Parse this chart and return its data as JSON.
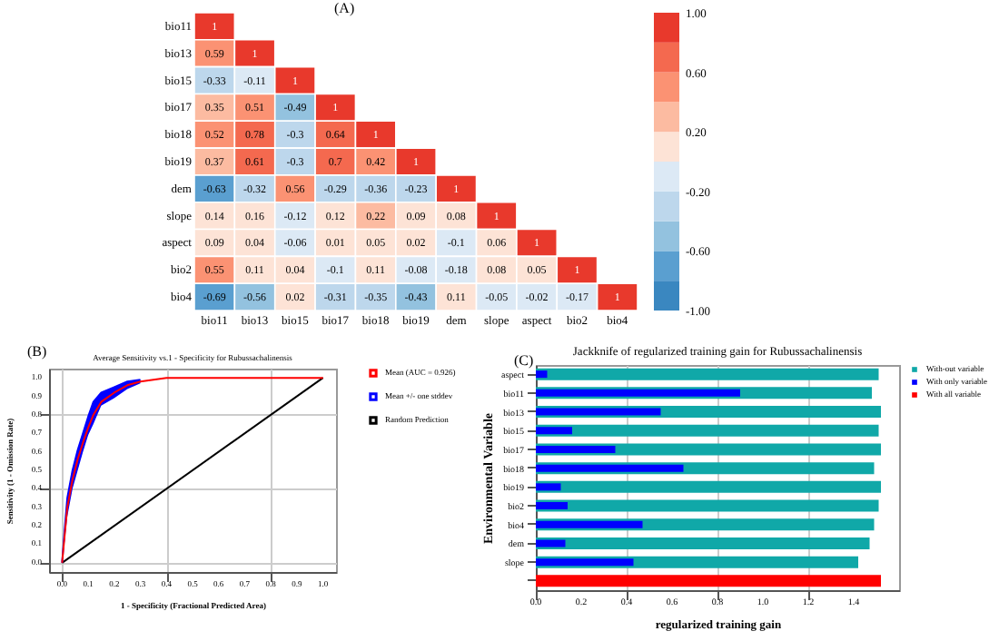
{
  "chart_data": [
    {
      "type": "heatmap",
      "annotations": [
        "(A)"
      ],
      "categories": [
        "bio11",
        "bio13",
        "bio15",
        "bio17",
        "bio18",
        "bio19",
        "dem",
        "slope",
        "aspect",
        "bio2",
        "bio4"
      ],
      "y_categories": [
        "bio11",
        "bio13",
        "bio15",
        "bio17",
        "bio18",
        "bio19",
        "dem",
        "slope",
        "aspect",
        "bio2",
        "bio4"
      ],
      "cells": [
        [
          1,
          null,
          null,
          null,
          null,
          null,
          null,
          null,
          null,
          null,
          null
        ],
        [
          0.59,
          1,
          null,
          null,
          null,
          null,
          null,
          null,
          null,
          null,
          null
        ],
        [
          -0.33,
          -0.11,
          1,
          null,
          null,
          null,
          null,
          null,
          null,
          null,
          null
        ],
        [
          0.35,
          0.51,
          -0.49,
          1,
          null,
          null,
          null,
          null,
          null,
          null,
          null
        ],
        [
          0.52,
          0.78,
          -0.3,
          0.64,
          1,
          null,
          null,
          null,
          null,
          null,
          null
        ],
        [
          0.37,
          0.61,
          -0.3,
          0.7,
          0.42,
          1,
          null,
          null,
          null,
          null,
          null
        ],
        [
          -0.63,
          -0.32,
          0.56,
          -0.29,
          -0.36,
          -0.23,
          1,
          null,
          null,
          null,
          null
        ],
        [
          0.14,
          0.16,
          -0.12,
          0.12,
          0.22,
          0.09,
          0.08,
          1,
          null,
          null,
          null
        ],
        [
          0.09,
          0.04,
          -0.06,
          0.01,
          0.05,
          0.02,
          -0.1,
          0.06,
          1,
          null,
          null
        ],
        [
          0.55,
          0.11,
          0.04,
          -0.1,
          0.11,
          -0.08,
          -0.18,
          0.08,
          0.05,
          1,
          null
        ],
        [
          -0.69,
          -0.56,
          0.02,
          -0.31,
          -0.35,
          -0.43,
          0.11,
          -0.05,
          -0.02,
          -0.17,
          1
        ]
      ],
      "data_labels": true,
      "clim": [
        -1,
        1
      ],
      "cticks": [
        {
          "value": -1,
          "label": "-1.00"
        },
        {
          "value": -0.6,
          "label": "-0.60"
        },
        {
          "value": -0.2,
          "label": "-0.20"
        },
        {
          "value": 0.2,
          "label": "0.20"
        },
        {
          "value": 0.6,
          "label": "0.60"
        },
        {
          "value": 1,
          "label": "1.00"
        }
      ]
    },
    {
      "type": "line",
      "title": "Average Sensitivity vs.1 - Specificity for Rubussachalinensis",
      "annotations": [
        "(B)"
      ],
      "xlabel": "1 - Specificity (Fractional Predicted Area)",
      "ylabel": "Sensitivity (1 - Omission Rate)",
      "x": [
        0,
        0.01,
        0.02,
        0.04,
        0.06,
        0.08,
        0.1,
        0.12,
        0.15,
        0.2,
        0.25,
        0.3,
        0.4,
        0.5,
        0.6,
        0.8,
        1
      ],
      "series": [
        {
          "name": "Mean (AUC = 0.926)",
          "color": "#ff0000",
          "values": [
            0,
            0.15,
            0.3,
            0.45,
            0.56,
            0.65,
            0.73,
            0.8,
            0.87,
            0.92,
            0.96,
            0.98,
            1,
            1,
            1,
            1,
            1
          ]
        },
        {
          "name": "Mean +/- one stddev",
          "color": "#0000ff",
          "values": [
            0,
            0.18,
            0.35,
            0.5,
            0.61,
            0.7,
            0.79,
            0.87,
            0.92,
            0.95,
            0.98,
            0.99,
            null,
            null,
            null,
            null,
            null
          ],
          "lower": [
            0,
            0.12,
            0.25,
            0.4,
            0.5,
            0.6,
            0.69,
            0.75,
            0.85,
            0.89,
            0.94,
            0.97,
            null,
            null,
            null,
            null,
            null
          ],
          "upper": [
            0,
            0.18,
            0.35,
            0.5,
            0.61,
            0.7,
            0.79,
            0.87,
            0.92,
            0.95,
            0.98,
            0.99,
            null,
            null,
            null,
            null,
            null
          ]
        },
        {
          "name": "Random Prediction",
          "color": "#000000",
          "x": [
            0,
            1
          ],
          "values": [
            0,
            1
          ]
        }
      ],
      "xlim": [
        -0.05,
        1.05
      ],
      "ylim": [
        -0.05,
        1.05
      ],
      "xticks": [
        {
          "value": 0,
          "label": "0.0"
        },
        {
          "value": 0.1,
          "label": "0.1"
        },
        {
          "value": 0.2,
          "label": "0.2"
        },
        {
          "value": 0.3,
          "label": "0.3"
        },
        {
          "value": 0.4,
          "label": "0.4"
        },
        {
          "value": 0.5,
          "label": "0.5"
        },
        {
          "value": 0.6,
          "label": "0.6"
        },
        {
          "value": 0.7,
          "label": "0.7"
        },
        {
          "value": 0.8,
          "label": "0.8"
        },
        {
          "value": 0.9,
          "label": "0.9"
        },
        {
          "value": 1,
          "label": "1.0"
        }
      ],
      "yticks": [
        {
          "value": 0,
          "label": "0.0"
        },
        {
          "value": 0.1,
          "label": "0.1"
        },
        {
          "value": 0.2,
          "label": "0.2"
        },
        {
          "value": 0.3,
          "label": "0.3"
        },
        {
          "value": 0.4,
          "label": "0.4"
        },
        {
          "value": 0.5,
          "label": "0.5"
        },
        {
          "value": 0.6,
          "label": "0.6"
        },
        {
          "value": 0.7,
          "label": "0.7"
        },
        {
          "value": 0.8,
          "label": "0.8"
        },
        {
          "value": 0.9,
          "label": "0.9"
        },
        {
          "value": 1,
          "label": "1.0"
        }
      ],
      "grid": true,
      "legend": "top right"
    },
    {
      "type": "bar",
      "orientation": "horizontal",
      "title": "Jackknife of regularized training gain for Rubussachalinensis",
      "annotations": [
        "(C)"
      ],
      "xlabel": "regularized training gain",
      "ylabel": "Environmental Variable",
      "categories": [
        "aspect",
        "bio11",
        "bio13",
        "bio15",
        "bio17",
        "bio18",
        "bio19",
        "bio2",
        "bio4",
        "dem",
        "slope",
        null
      ],
      "series": [
        {
          "name": "With-out variable",
          "color": "#10a8a8",
          "values": [
            1.51,
            1.48,
            1.52,
            1.51,
            1.52,
            1.49,
            1.52,
            1.51,
            1.49,
            1.47,
            1.42,
            null
          ]
        },
        {
          "name": "With only variable",
          "color": "#0000ff",
          "values": [
            0.05,
            0.9,
            0.55,
            0.16,
            0.35,
            0.65,
            0.11,
            0.14,
            0.47,
            0.13,
            0.43,
            null
          ]
        },
        {
          "name": "With all variable",
          "color": "#ff0000",
          "values": [
            null,
            null,
            null,
            null,
            null,
            null,
            null,
            null,
            null,
            null,
            null,
            1.52
          ]
        }
      ],
      "xlim": [
        0,
        1.6
      ],
      "xticks": [
        {
          "value": 0,
          "label": "0.0"
        },
        {
          "value": 0.2,
          "label": "0.2"
        },
        {
          "value": 0.4,
          "label": "0.4"
        },
        {
          "value": 0.6,
          "label": "0.6"
        },
        {
          "value": 0.8,
          "label": "0.8"
        },
        {
          "value": 1,
          "label": "1.0"
        },
        {
          "value": 1.2,
          "label": "1.2"
        },
        {
          "value": 1.4,
          "label": "1.4"
        }
      ],
      "grid": "x",
      "legend": "top right"
    }
  ]
}
